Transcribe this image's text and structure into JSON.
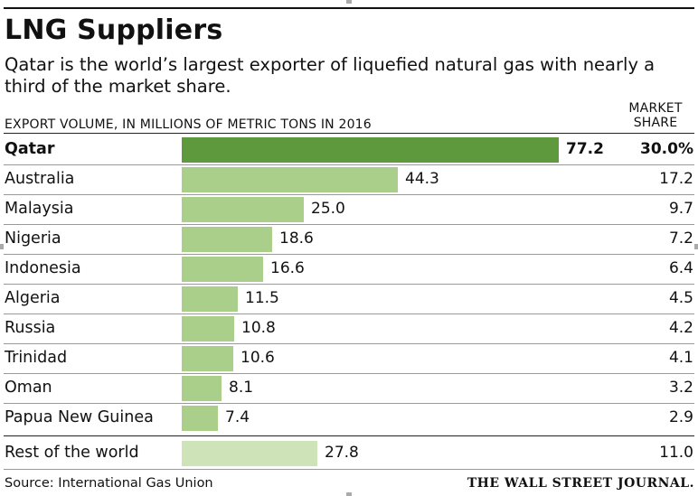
{
  "header": {
    "title": "LNG Suppliers",
    "subtitle": "Qatar is the world’s largest exporter of liquefied natural gas with nearly a third of the market share.",
    "left_column_label": "EXPORT VOLUME, IN MILLIONS OF METRIC TONS IN 2016",
    "right_column_label": "MARKET SHARE"
  },
  "footer": {
    "source": "Source: International Gas Union",
    "credit": "THE WALL STREET JOURNAL."
  },
  "colors": {
    "highlight": "#5f993e",
    "bar": "#a9cf8a",
    "rest": "#cfe3b9"
  },
  "chart_data": {
    "type": "bar",
    "orientation": "horizontal",
    "title": "LNG Suppliers",
    "xlabel": "EXPORT VOLUME, IN MILLIONS OF METRIC TONS IN 2016",
    "xlim": [
      0,
      77.2
    ],
    "grid": false,
    "categories": [
      "Qatar",
      "Australia",
      "Malaysia",
      "Nigeria",
      "Indonesia",
      "Algeria",
      "Russia",
      "Trinidad",
      "Oman",
      "Papua New Guinea",
      "Rest of the world"
    ],
    "values": [
      77.2,
      44.3,
      25.0,
      18.6,
      16.6,
      11.5,
      10.8,
      10.6,
      8.1,
      7.4,
      27.8
    ],
    "value_labels": [
      "77.2",
      "44.3",
      "25.0",
      "18.6",
      "16.6",
      "11.5",
      "10.8",
      "10.6",
      "8.1",
      "7.4",
      "27.8"
    ],
    "market_share": [
      "30.0%",
      "17.2",
      "9.7",
      "7.2",
      "6.4",
      "4.5",
      "4.2",
      "4.1",
      "3.2",
      "2.9",
      "11.0"
    ],
    "highlighted": "Qatar"
  }
}
